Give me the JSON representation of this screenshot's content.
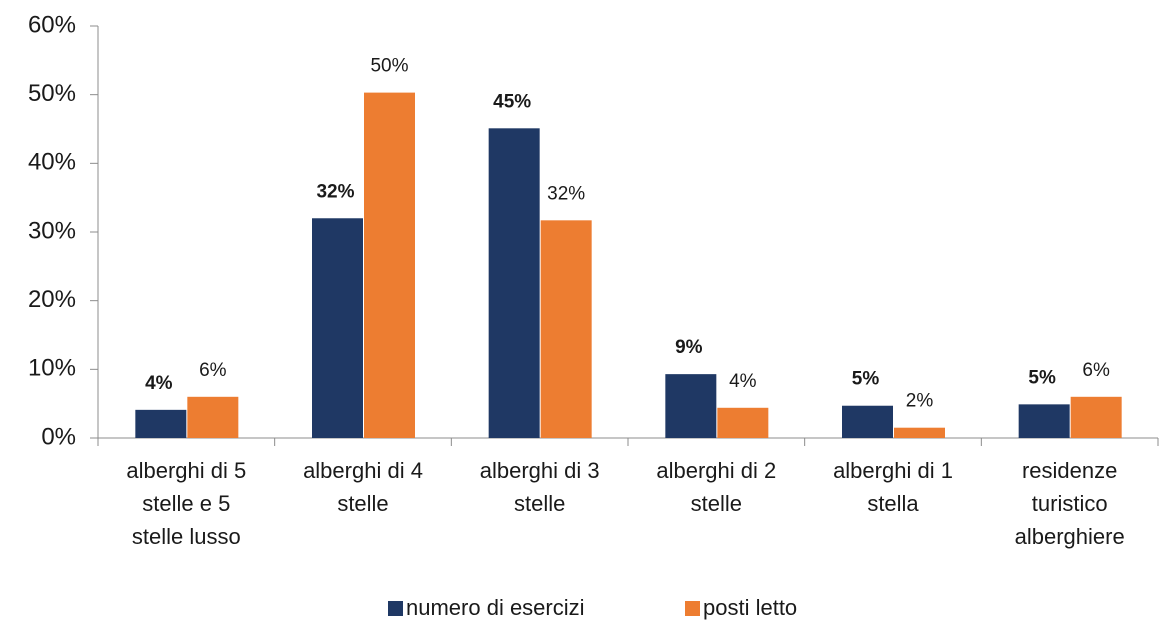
{
  "chart_data": {
    "type": "bar",
    "categories": [
      "alberghi di 5\nstelle e 5\nstelle lusso",
      "alberghi di 4\nstelle",
      "alberghi di 3\nstelle",
      "alberghi di 2\nstelle",
      "alberghi di 1\nstella",
      "residenze\nturistico\nalberghiere"
    ],
    "series": [
      {
        "name": "numero di esercizi",
        "color": "#1f3864",
        "values": [
          4.1,
          32,
          45.1,
          9.3,
          4.7,
          4.9
        ],
        "value_labels": [
          "4%",
          "32%",
          "45%",
          "9%",
          "5%",
          "5%"
        ]
      },
      {
        "name": "posti letto",
        "color": "#ed7d31",
        "values": [
          6,
          50.3,
          31.7,
          4.4,
          1.5,
          6
        ],
        "value_labels": [
          "6%",
          "50%",
          "32%",
          "4%",
          "2%",
          "6%"
        ]
      }
    ],
    "ylim": [
      0,
      60
    ],
    "yticks": [
      {
        "value": 0,
        "label": "0%"
      },
      {
        "value": 10,
        "label": "10%"
      },
      {
        "value": 20,
        "label": "20%"
      },
      {
        "value": 30,
        "label": "30%"
      },
      {
        "value": 40,
        "label": "40%"
      },
      {
        "value": 50,
        "label": "50%"
      },
      {
        "value": 60,
        "label": "60%"
      }
    ],
    "legend": "bottom"
  }
}
